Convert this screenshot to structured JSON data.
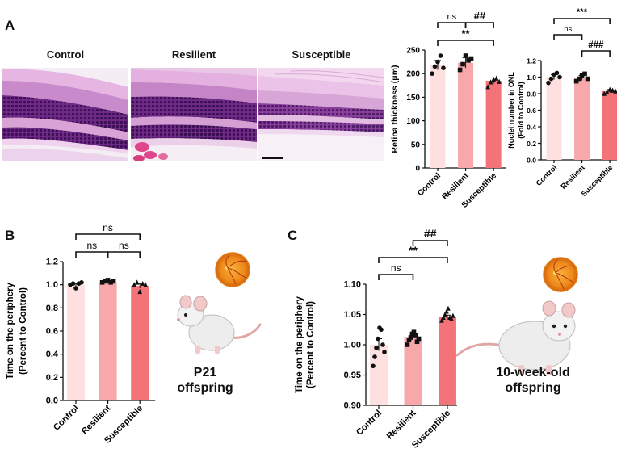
{
  "panels": {
    "a": "A",
    "b": "B",
    "c": "C"
  },
  "images": {
    "control_title": "Control",
    "resilient_title": "Resilient",
    "susceptible_title": "Susceptible"
  },
  "labels": {
    "p21_line1": "P21",
    "p21_line2": "offspring",
    "adult_line1": "10-week-old",
    "adult_line2": "offspring"
  },
  "colors": {
    "control": "#fde0df",
    "resilient": "#f8a8aa",
    "susceptible": "#f47379",
    "stain_dark": "#5a1a72",
    "stain_mid": "#b05cb5",
    "stain_light": "#e8b8e3"
  },
  "chart_data": [
    {
      "id": "retina",
      "type": "bar",
      "categories": [
        "Control",
        "Resilient",
        "Susceptible"
      ],
      "values": [
        218,
        223,
        185
      ],
      "errors": [
        10,
        11,
        6
      ],
      "points": [
        [
          200,
          215,
          225,
          238,
          212
        ],
        [
          208,
          220,
          238,
          228,
          232
        ],
        [
          172,
          182,
          188,
          190,
          183
        ]
      ],
      "markers": [
        "circle",
        "square",
        "triangle"
      ],
      "ylabel": "Retina thickness (μm)",
      "ylim": [
        0,
        250
      ],
      "yticks": [
        0,
        50,
        100,
        150,
        200,
        250
      ],
      "significance": [
        {
          "from": 0,
          "to": 2,
          "label": "**",
          "level": 1
        },
        {
          "from": 0,
          "to": 1,
          "label": "ns",
          "level": 2,
          "joined": true
        },
        {
          "from": 1,
          "to": 2,
          "label": "##",
          "level": 2,
          "joined": true
        }
      ]
    },
    {
      "id": "onl",
      "type": "bar",
      "categories": [
        "Control",
        "Resilient",
        "Susceptible"
      ],
      "values": [
        1.0,
        0.99,
        0.83
      ],
      "errors": [
        0.03,
        0.03,
        0.02
      ],
      "points": [
        [
          0.93,
          0.98,
          1.03,
          1.05,
          1.0
        ],
        [
          0.95,
          0.98,
          1.02,
          1.04,
          0.98
        ],
        [
          0.8,
          0.82,
          0.85,
          0.84,
          0.83
        ]
      ],
      "markers": [
        "circle",
        "square",
        "triangle"
      ],
      "ylabel": "Nuclei number in ONL",
      "ylabel2": "(Fold to Control)",
      "ylim": [
        0,
        1.2
      ],
      "yticks": [
        0.0,
        0.2,
        0.4,
        0.6,
        0.8,
        1.0,
        1.2
      ],
      "significance": [
        {
          "from": 0,
          "to": 2,
          "label": "***",
          "level": 3
        },
        {
          "from": 0,
          "to": 1,
          "label": "ns",
          "level": 2,
          "joined": true
        },
        {
          "from": 1,
          "to": 2,
          "label": "###",
          "level": 1,
          "joined": true
        }
      ]
    },
    {
      "id": "p21",
      "type": "bar",
      "categories": [
        "Control",
        "Resilient",
        "Susceptible"
      ],
      "values": [
        1.0,
        1.02,
        0.99
      ],
      "errors": [
        0.01,
        0.01,
        0.02
      ],
      "points": [
        [
          1.0,
          1.01,
          0.97,
          1.01,
          1.02
        ],
        [
          1.02,
          1.03,
          1.04,
          1.02,
          1.03
        ],
        [
          1.0,
          1.02,
          0.94,
          1.01,
          1.0
        ]
      ],
      "markers": [
        "circle",
        "square",
        "triangle"
      ],
      "ylabel": "Time on the periphery",
      "ylabel2": "(Percent to Control)",
      "ylim": [
        0.0,
        1.2
      ],
      "yticks": [
        0.0,
        0.2,
        0.4,
        0.6,
        0.8,
        1.0,
        1.2
      ],
      "significance": [
        {
          "from": 0,
          "to": 2,
          "label": "ns",
          "level": 2
        },
        {
          "from": 0,
          "to": 1,
          "label": "ns",
          "level": 1,
          "joined": true
        },
        {
          "from": 1,
          "to": 2,
          "label": "ns",
          "level": 1,
          "joined": true
        }
      ]
    },
    {
      "id": "adult",
      "type": "bar",
      "categories": [
        "Control",
        "Resilient",
        "Susceptible"
      ],
      "values": [
        1.0,
        1.013,
        1.046
      ],
      "errors": [
        0.01,
        0.004,
        0.003
      ],
      "points": [
        [
          0.965,
          0.98,
          0.995,
          1.01,
          1.028,
          1.025,
          1.0,
          0.988
        ],
        [
          1.0,
          1.008,
          1.012,
          1.018,
          1.021,
          1.016,
          1.005,
          1.01
        ],
        [
          1.04,
          1.045,
          1.05,
          1.055,
          1.06,
          1.045,
          1.043,
          1.048
        ]
      ],
      "markers": [
        "circle",
        "square",
        "triangle"
      ],
      "ylabel": "Time on the periphery",
      "ylabel2": "(Percent to Control)",
      "ylim": [
        0.9,
        1.1
      ],
      "yticks": [
        0.9,
        0.95,
        1.0,
        1.05,
        1.1
      ],
      "significance": [
        {
          "from": 0,
          "to": 1,
          "label": "ns",
          "level": 1
        },
        {
          "from": 0,
          "to": 2,
          "label": "**",
          "level": 2,
          "joined": true
        },
        {
          "from": 1,
          "to": 2,
          "label": "##",
          "level": 3,
          "joined": true
        }
      ]
    }
  ]
}
